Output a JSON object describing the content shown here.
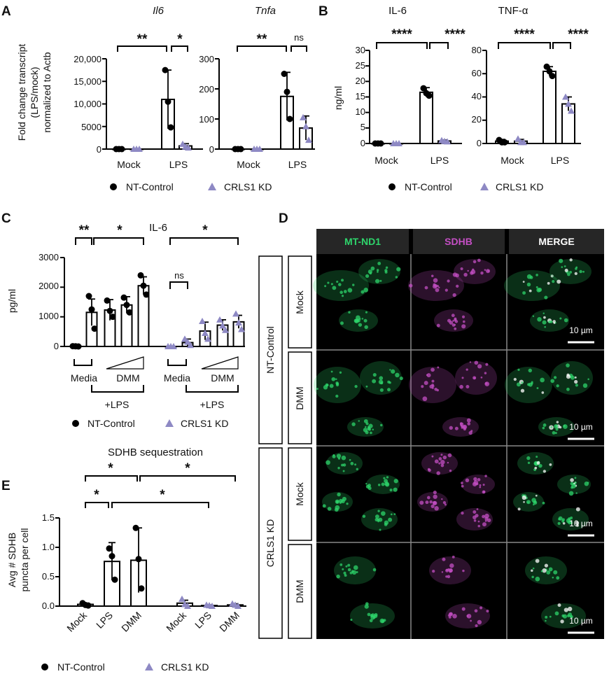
{
  "legend": {
    "nt": "NT-Control",
    "kd": "CRLS1 KD"
  },
  "colors": {
    "nt": "#000000",
    "kd": "#8e89c4",
    "green": "#2ed46b",
    "magenta": "#c44fc4",
    "merge": "#ffffff"
  },
  "panel_letters": {
    "A": "A",
    "B": "B",
    "C": "C",
    "D": "D",
    "E": "E"
  },
  "panelA": {
    "ylabel_lines": [
      "Fold change transcript",
      "(LPS/mock)",
      "normalized to Actb"
    ],
    "subplots": [
      {
        "title": "Il6",
        "ticks": [
          "0",
          "5000",
          "10,000",
          "15,000",
          "20,000"
        ]
      },
      {
        "title": "Tnfa",
        "ticks": [
          "0",
          "100",
          "200",
          "300"
        ]
      }
    ],
    "categories": [
      "Mock",
      "LPS"
    ],
    "sig": [
      "**",
      "*",
      "**",
      "ns"
    ]
  },
  "panelB": {
    "ylabel": "ng/ml",
    "subplots": [
      {
        "title": "IL-6",
        "ticks": [
          "0",
          "5",
          "10",
          "15",
          "20",
          "25",
          "30"
        ]
      },
      {
        "title": "TNF-α",
        "ticks": [
          "0",
          "20",
          "40",
          "60",
          "80"
        ]
      }
    ],
    "categories": [
      "Mock",
      "LPS"
    ],
    "sig": [
      "****",
      "****",
      "****",
      "****"
    ]
  },
  "panelC": {
    "title": "IL-6",
    "ylabel": "pg/ml",
    "ticks": [
      "0",
      "1000",
      "2000",
      "3000"
    ],
    "media": "Media",
    "dmm": "DMM",
    "lps": "+LPS",
    "sig": [
      "**",
      "*",
      "ns",
      "*"
    ]
  },
  "panelD": {
    "channels": [
      "MT-ND1",
      "SDHB",
      "MERGE"
    ],
    "groups": [
      "NT-Control",
      "CRLS1 KD"
    ],
    "conditions": [
      "Mock",
      "DMM",
      "Mock",
      "DMM"
    ],
    "scale_bar": "10 µm"
  },
  "panelE": {
    "title": "SDHB sequestration",
    "ylabel_lines": [
      "Avg # SDHB",
      "puncta per cell"
    ],
    "ticks": [
      "0.0",
      "0.5",
      "1.0",
      "1.5"
    ],
    "categories": [
      "Mock",
      "LPS",
      "DMM",
      "Mock",
      "LPS",
      "DMM"
    ],
    "sig": [
      "*",
      "*",
      "*",
      "*"
    ]
  },
  "chart_data": [
    {
      "type": "bar",
      "title": "Il6",
      "ylabel": "Fold change transcript (LPS/mock) normalized to Actb",
      "categories": [
        "Mock",
        "LPS"
      ],
      "ylim": [
        0,
        20000
      ],
      "series": [
        {
          "name": "NT-Control",
          "values": [
            0,
            11000
          ],
          "errors": [
            0,
            6500
          ],
          "points": [
            [
              0,
              0,
              0
            ],
            [
              17500,
              10500,
              4800
            ]
          ]
        },
        {
          "name": "CRLS1 KD",
          "values": [
            0,
            700
          ],
          "errors": [
            0,
            500
          ],
          "points": [
            [
              0,
              0,
              0
            ],
            [
              1100,
              500,
              300
            ]
          ]
        }
      ]
    },
    {
      "type": "bar",
      "title": "Tnfa",
      "categories": [
        "Mock",
        "LPS"
      ],
      "ylim": [
        0,
        300
      ],
      "series": [
        {
          "name": "NT-Control",
          "values": [
            0,
            175
          ],
          "errors": [
            0,
            80
          ],
          "points": [
            [
              0,
              0,
              0
            ],
            [
              250,
              190,
              100
            ]
          ]
        },
        {
          "name": "CRLS1 KD",
          "values": [
            0,
            70
          ],
          "errors": [
            0,
            40
          ],
          "points": [
            [
              0,
              0,
              0
            ],
            [
              105,
              75,
              30
            ]
          ]
        }
      ]
    },
    {
      "type": "bar",
      "title": "IL-6",
      "ylabel": "ng/ml",
      "categories": [
        "Mock",
        "LPS"
      ],
      "ylim": [
        0,
        30
      ],
      "series": [
        {
          "name": "NT-Control",
          "values": [
            0,
            16.5
          ],
          "errors": [
            0,
            1.5
          ],
          "points": [
            [
              0,
              0,
              0
            ],
            [
              17.8,
              16.2,
              15.4
            ]
          ]
        },
        {
          "name": "CRLS1 KD",
          "values": [
            0,
            0.8
          ],
          "errors": [
            0,
            0.3
          ],
          "points": [
            [
              0,
              0,
              0
            ],
            [
              1.0,
              0.7,
              0.6
            ]
          ]
        }
      ]
    },
    {
      "type": "bar",
      "title": "TNF-α",
      "ylabel": "ng/ml",
      "categories": [
        "Mock",
        "LPS"
      ],
      "ylim": [
        0,
        80
      ],
      "series": [
        {
          "name": "NT-Control",
          "values": [
            2,
            62
          ],
          "errors": [
            1.5,
            4
          ],
          "points": [
            [
              3,
              1,
              1
            ],
            [
              66,
              62,
              58
            ]
          ]
        },
        {
          "name": "CRLS1 KD",
          "values": [
            2,
            34
          ],
          "errors": [
            1.5,
            6
          ],
          "points": [
            [
              4,
              1,
              1
            ],
            [
              40,
              34,
              28
            ]
          ]
        }
      ]
    },
    {
      "type": "bar",
      "title": "IL-6",
      "ylabel": "pg/ml",
      "categories": [
        "Media",
        "Media +LPS",
        "DMM low +LPS",
        "DMM mid +LPS",
        "DMM high +LPS"
      ],
      "ylim": [
        0,
        3000
      ],
      "series": [
        {
          "name": "NT-Control",
          "values": [
            10,
            1150,
            1230,
            1400,
            2050
          ],
          "errors": [
            10,
            450,
            350,
            280,
            300
          ],
          "points": [
            [
              10,
              5,
              0
            ],
            [
              1700,
              1250,
              600
            ],
            [
              1550,
              1200,
              1000
            ],
            [
              1650,
              1400,
              1150
            ],
            [
              2400,
              2050,
              1750
            ]
          ]
        },
        {
          "name": "CRLS1 KD",
          "values": [
            0,
            130,
            520,
            720,
            830
          ],
          "errors": [
            0,
            120,
            300,
            180,
            220
          ],
          "points": [
            [
              0,
              0,
              0
            ],
            [
              250,
              150,
              40
            ],
            [
              850,
              450,
              250
            ],
            [
              900,
              700,
              550
            ],
            [
              1100,
              800,
              580
            ]
          ]
        }
      ]
    },
    {
      "type": "bar",
      "title": "SDHB sequestration",
      "ylabel": "Avg # SDHB puncta per cell",
      "categories": [
        "Mock",
        "LPS",
        "DMM"
      ],
      "ylim": [
        0,
        1.5
      ],
      "series": [
        {
          "name": "NT-Control",
          "values": [
            0.03,
            0.76,
            0.78
          ],
          "errors": [
            0.02,
            0.32,
            0.55
          ],
          "points": [
            [
              0.05,
              0.02,
              0.01
            ],
            [
              0.98,
              0.85,
              0.45
            ],
            [
              1.33,
              0.8,
              0.3
            ]
          ]
        },
        {
          "name": "CRLS1 KD",
          "values": [
            0.05,
            0.01,
            0.02
          ],
          "errors": [
            0.05,
            0.01,
            0.02
          ],
          "points": [
            [
              0.12,
              0.03,
              0.0
            ],
            [
              0.02,
              0.01,
              0.0
            ],
            [
              0.04,
              0.02,
              0.0
            ]
          ]
        }
      ]
    }
  ]
}
